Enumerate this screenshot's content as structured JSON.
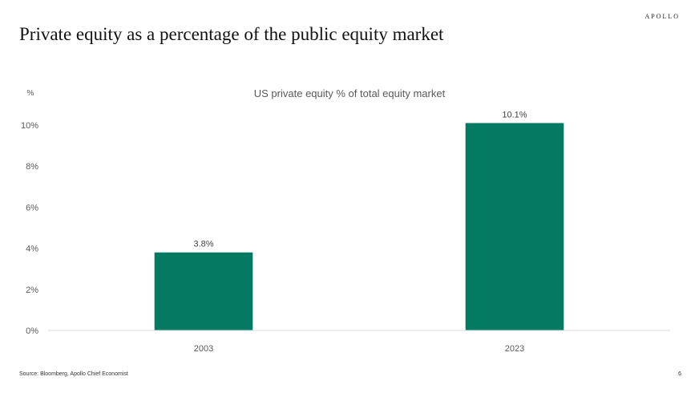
{
  "header": {
    "logo_text": "APOLLO",
    "title": "Private equity as a percentage of the public equity market"
  },
  "chart_data": {
    "type": "bar",
    "title": "US private equity % of total equity market",
    "ylabel": "%",
    "xlabel": "",
    "categories": [
      "2003",
      "2023"
    ],
    "values": [
      3.8,
      10.1
    ],
    "data_labels": [
      "3.8%",
      "10.1%"
    ],
    "ylim": [
      0,
      10
    ],
    "yticks": [
      0,
      2,
      4,
      6,
      8,
      10
    ],
    "ytick_labels": [
      "0%",
      "2%",
      "4%",
      "6%",
      "8%",
      "10%"
    ],
    "bar_color": "#047A63",
    "grid": false,
    "legend": "none"
  },
  "footer": {
    "source": "Source: Bloomberg, Apollo Chief Economist",
    "page_number": "6"
  }
}
